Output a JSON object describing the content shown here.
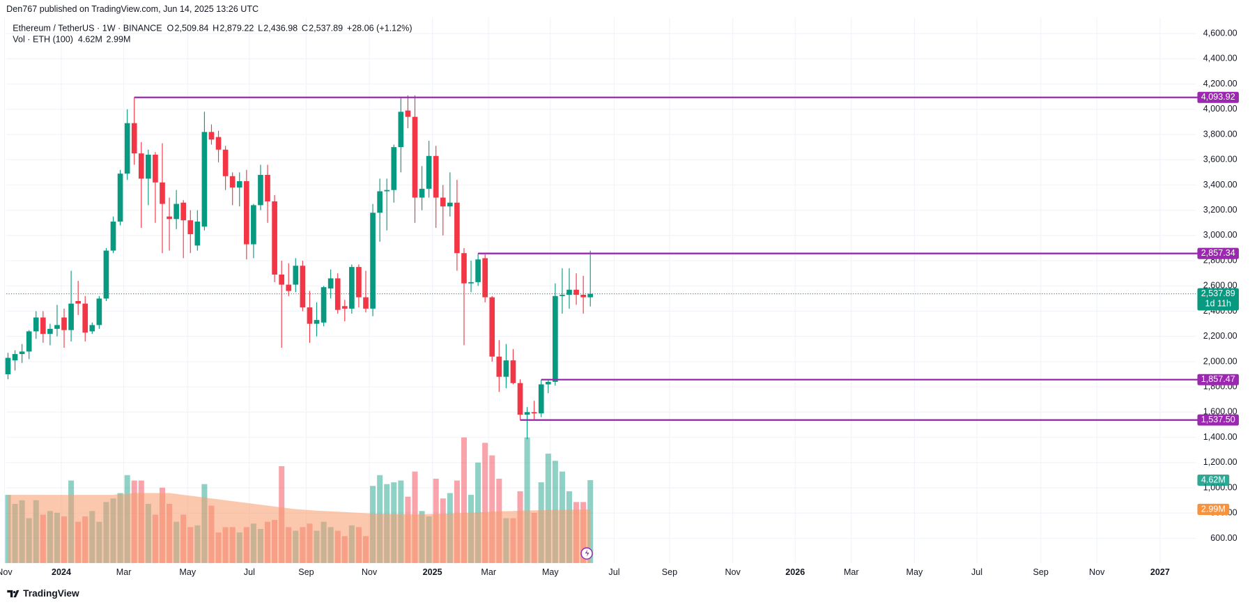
{
  "header": {
    "published": "Den767 published on TradingView.com, Jun 14, 2025 13:26 UTC",
    "brand": "TradingView"
  },
  "chart_data": {
    "type": "candlestick",
    "title": "Ethereum / TetherUS · 1W · BINANCE",
    "ohlc": [
      {
        "key": "O",
        "label": "2,509.84"
      },
      {
        "key": "H",
        "label": "2,879.22"
      },
      {
        "key": "L",
        "label": "2,436.98"
      },
      {
        "key": "C",
        "label": "2,537.89"
      }
    ],
    "change": "+28.06 (+1.12%)",
    "open": [
      1900,
      2010,
      2060,
      2080,
      2240,
      2350,
      2220,
      2260,
      2350,
      2250,
      2480,
      2460,
      2240,
      2290,
      2500,
      2880,
      3110,
      3490,
      3890,
      3650,
      3450,
      3640,
      3420,
      3150,
      3130,
      3260,
      3120,
      2920,
      3070,
      3820,
      3780,
      3680,
      3470,
      3380,
      3430,
      2930,
      3240,
      3480,
      3270,
      2690,
      2610,
      2610,
      2760,
      2430,
      2300,
      2310,
      2580,
      2660,
      2440,
      2420,
      2750,
      2510,
      2420,
      3180,
      3350,
      3360,
      3700,
      3990,
      3940,
      3300,
      3370,
      3630,
      3300,
      3230,
      3260,
      2860,
      2620,
      2630,
      2820,
      2510,
      2040,
      1880,
      2010,
      1830,
      1580,
      1600,
      1590,
      1820,
      1840,
      2520,
      2530,
      2570,
      2530,
      2509.84
    ],
    "high": [
      2070,
      2090,
      2140,
      2250,
      2400,
      2400,
      2300,
      2450,
      2420,
      2720,
      2640,
      2520,
      2310,
      2520,
      2900,
      3150,
      3520,
      4000,
      4093.92,
      3740,
      3680,
      3660,
      3730,
      3300,
      3360,
      3280,
      3200,
      3200,
      3980,
      3880,
      3830,
      3710,
      3500,
      3500,
      3520,
      3250,
      3560,
      3560,
      3320,
      2800,
      2780,
      2820,
      2800,
      2560,
      2470,
      2600,
      2730,
      2700,
      2490,
      2770,
      2770,
      2720,
      3250,
      3450,
      3450,
      3720,
      4090,
      4110,
      4110,
      3550,
      3750,
      3710,
      3400,
      3500,
      3440,
      2900,
      2800,
      2857.34,
      2850,
      2520,
      2170,
      2140,
      2100,
      1860,
      1640,
      1690,
      1857.47,
      1860,
      2620,
      2740,
      2740,
      2700,
      2680,
      2879.22
    ],
    "low": [
      1860,
      1930,
      1990,
      2020,
      2180,
      2150,
      2130,
      2200,
      2110,
      2160,
      2370,
      2160,
      2220,
      2260,
      2480,
      2860,
      3080,
      3440,
      3560,
      3060,
      3240,
      3100,
      2860,
      2880,
      3050,
      2820,
      2860,
      2880,
      3040,
      3720,
      3580,
      3360,
      3240,
      3230,
      2810,
      2820,
      3200,
      3100,
      2630,
      2110,
      2520,
      2550,
      2400,
      2150,
      2200,
      2280,
      2500,
      2380,
      2320,
      2380,
      2430,
      2390,
      2360,
      2950,
      3040,
      3260,
      3500,
      3850,
      3100,
      3200,
      3300,
      3060,
      3000,
      3150,
      2720,
      2130,
      2550,
      2600,
      2470,
      2000,
      1760,
      1790,
      1820,
      1537.5,
      1385,
      1540,
      1560,
      1750,
      1810,
      2380,
      2420,
      2450,
      2380,
      2436.98
    ],
    "close": [
      2030,
      2060,
      2080,
      2240,
      2350,
      2220,
      2260,
      2290,
      2250,
      2460,
      2460,
      2230,
      2290,
      2500,
      2880,
      3110,
      3490,
      3890,
      3650,
      3450,
      3640,
      3420,
      3250,
      3130,
      3250,
      3120,
      3010,
      3110,
      3820,
      3760,
      3680,
      3470,
      3380,
      3430,
      2930,
      3240,
      3480,
      3270,
      2690,
      2610,
      2560,
      2760,
      2430,
      2300,
      2330,
      2590,
      2660,
      2410,
      2420,
      2750,
      2510,
      2420,
      3180,
      3350,
      3360,
      3700,
      3980,
      3940,
      3300,
      3370,
      3630,
      3300,
      3230,
      3260,
      2860,
      2620,
      2630,
      2810,
      2510,
      2040,
      1880,
      2010,
      1830,
      1580,
      1600,
      1590,
      1820,
      1840,
      2520,
      2530,
      2570,
      2530,
      2510,
      2537.89
    ],
    "up_color": "#089981",
    "down_color": "#f23645",
    "volume_title": "Vol · ETH (100)",
    "volume": [
      3.8,
      3.3,
      3.5,
      2.5,
      3.5,
      2.7,
      2.9,
      2.8,
      2.6,
      4.6,
      2.3,
      2.6,
      2.9,
      2.3,
      3.4,
      3.6,
      3.9,
      4.9,
      4.6,
      4.6,
      3.3,
      2.7,
      4.2,
      3.3,
      2.3,
      2.7,
      2.0,
      2.1,
      4.4,
      3.2,
      1.7,
      2.0,
      2.0,
      1.7,
      2.0,
      2.2,
      1.9,
      2.3,
      2.4,
      5.4,
      2.0,
      1.8,
      2.0,
      2.2,
      1.8,
      2.3,
      2.0,
      1.8,
      1.5,
      2.1,
      2.0,
      1.5,
      4.3,
      4.9,
      4.4,
      4.5,
      4.6,
      3.7,
      5.1,
      2.9,
      2.6,
      4.7,
      3.6,
      3.9,
      4.6,
      7.0,
      3.8,
      5.6,
      6.7,
      6.0,
      4.7,
      2.5,
      2.5,
      4.0,
      7.0,
      2.8,
      4.5,
      6.1,
      5.7,
      5.1,
      4.0,
      3.4,
      3.4,
      4.62
    ],
    "volume_label": "4.62M",
    "volume_ma": [
      3.8,
      3.8,
      3.8,
      3.8,
      3.8,
      3.8,
      3.8,
      3.8,
      3.8,
      3.8,
      3.8,
      3.8,
      3.8,
      3.8,
      3.8,
      3.8,
      3.85,
      3.85,
      3.9,
      3.9,
      3.9,
      3.9,
      3.9,
      3.9,
      3.85,
      3.8,
      3.75,
      3.7,
      3.65,
      3.6,
      3.55,
      3.5,
      3.45,
      3.4,
      3.35,
      3.3,
      3.25,
      3.2,
      3.15,
      3.1,
      3.05,
      3.0,
      2.98,
      2.95,
      2.92,
      2.9,
      2.88,
      2.86,
      2.84,
      2.82,
      2.8,
      2.78,
      2.76,
      2.75,
      2.74,
      2.73,
      2.72,
      2.72,
      2.72,
      2.72,
      2.73,
      2.74,
      2.75,
      2.76,
      2.78,
      2.8,
      2.81,
      2.82,
      2.84,
      2.86,
      2.88,
      2.89,
      2.9,
      2.92,
      2.93,
      2.94,
      2.95,
      2.96,
      2.97,
      2.97,
      2.98,
      2.98,
      2.99,
      2.99
    ],
    "volume_ma_label": "2.99M",
    "volume_ma_color": "#f89a6c",
    "volume_ylim": [
      0,
      30.4
    ],
    "ylim": [
      404,
      4726
    ],
    "yticks": [
      {
        "value": 600,
        "label": "600.00"
      },
      {
        "value": 800,
        "label": "800.00"
      },
      {
        "value": 1000,
        "label": "1,000.00"
      },
      {
        "value": 1200,
        "label": "1,200.00"
      },
      {
        "value": 1400,
        "label": "1,400.00"
      },
      {
        "value": 1600,
        "label": "1,600.00"
      },
      {
        "value": 1800,
        "label": "1,800.00"
      },
      {
        "value": 2000,
        "label": "2,000.00"
      },
      {
        "value": 2200,
        "label": "2,200.00"
      },
      {
        "value": 2400,
        "label": "2,400.00"
      },
      {
        "value": 2600,
        "label": "2,600.00"
      },
      {
        "value": 2800,
        "label": "2,800.00"
      },
      {
        "value": 3000,
        "label": "3,000.00"
      },
      {
        "value": 3200,
        "label": "3,200.00"
      },
      {
        "value": 3400,
        "label": "3,400.00"
      },
      {
        "value": 3600,
        "label": "3,600.00"
      },
      {
        "value": 3800,
        "label": "3,800.00"
      },
      {
        "value": 4000,
        "label": "4,000.00"
      },
      {
        "value": 4200,
        "label": "4,200.00"
      },
      {
        "value": 4400,
        "label": "4,400.00"
      },
      {
        "value": 4600,
        "label": "4,600.00"
      }
    ],
    "xlim": [
      -0.23,
      169.3
    ],
    "xticks": [
      {
        "value": -0.5,
        "label": "Nov"
      },
      {
        "value": 7.6,
        "label": "2024"
      },
      {
        "value": 16.5,
        "label": "Mar"
      },
      {
        "value": 25.6,
        "label": "May"
      },
      {
        "value": 34.4,
        "label": "Jul"
      },
      {
        "value": 42.5,
        "label": "Sep"
      },
      {
        "value": 51.5,
        "label": "Nov"
      },
      {
        "value": 60.5,
        "label": "2025"
      },
      {
        "value": 68.5,
        "label": "Mar"
      },
      {
        "value": 77.3,
        "label": "May"
      },
      {
        "value": 86.4,
        "label": "Jul"
      },
      {
        "value": 94.3,
        "label": "Sep"
      },
      {
        "value": 103.3,
        "label": "Nov"
      },
      {
        "value": 112.2,
        "label": "2026"
      },
      {
        "value": 120.2,
        "label": "Mar"
      },
      {
        "value": 129.2,
        "label": "May"
      },
      {
        "value": 138.1,
        "label": "Jul"
      },
      {
        "value": 147.2,
        "label": "Sep"
      },
      {
        "value": 155.2,
        "label": "Nov"
      },
      {
        "value": 164.2,
        "label": "2027"
      }
    ],
    "levels": [
      {
        "value": 4093.92,
        "label": "4,093.92",
        "from": 18
      },
      {
        "value": 2857.34,
        "label": "2,857.34",
        "from": 67
      },
      {
        "value": 1857.47,
        "label": "1,857.47",
        "from": 76
      },
      {
        "value": 1537.5,
        "label": "1,537.50",
        "from": 73
      }
    ],
    "level_color": "#9c27b0",
    "last_price": {
      "value": 2537.89,
      "label": "2,537.89",
      "countdown": "1d 11h"
    },
    "grid": true
  }
}
